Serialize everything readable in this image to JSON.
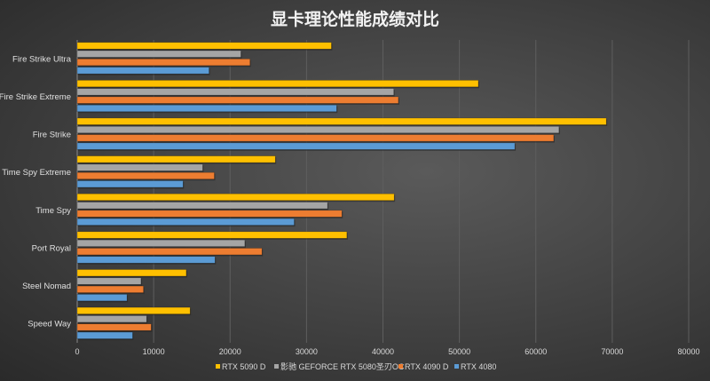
{
  "chart_data": {
    "type": "bar",
    "orientation": "horizontal",
    "title": "显卡理论性能成绩对比",
    "categories": [
      "Fire Strike Ultra",
      "Fire Strike Extreme",
      "Fire Strike",
      "Time Spy Extreme",
      "Time Spy",
      "Port Royal",
      "Steel Nomad",
      "Speed Way"
    ],
    "series": [
      {
        "name": "RTX 5090 D",
        "color": "#ffc000",
        "values": [
          33260,
          52480,
          69220,
          25920,
          41470,
          35280,
          14270,
          14770
        ]
      },
      {
        "name": "影驰 GEFORCE RTX 5080圣刃OC",
        "color": "#a5a5a5",
        "values": [
          21420,
          41420,
          63030,
          16420,
          32750,
          21930,
          8350,
          9080
        ]
      },
      {
        "name": "RTX 4090 D",
        "color": "#ed7d31",
        "values": [
          22610,
          42020,
          62340,
          17940,
          34630,
          24170,
          8670,
          9680
        ]
      },
      {
        "name": "RTX 4080",
        "color": "#5b9bd5",
        "values": [
          17250,
          33940,
          57250,
          13850,
          28390,
          18030,
          6510,
          7250
        ]
      }
    ],
    "xlim": [
      0,
      80000
    ],
    "xticks": [
      "0",
      "10000",
      "20000",
      "30000",
      "40000",
      "50000",
      "60000",
      "70000",
      "80000"
    ],
    "grid": true,
    "legend": "bottom"
  }
}
